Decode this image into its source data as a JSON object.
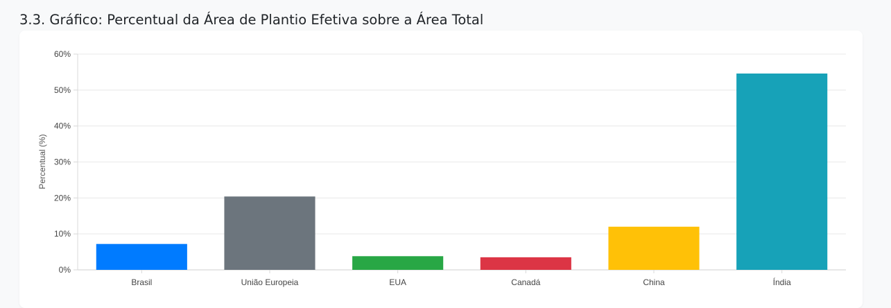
{
  "section": {
    "title": "3.3. Gráfico: Percentual da Área de Plantio Efetiva sobre a Área Total"
  },
  "chart_data": {
    "type": "bar",
    "title": "",
    "xlabel": "",
    "ylabel": "Percentual (%)",
    "ylim": [
      0,
      60
    ],
    "y_ticks": [
      "0%",
      "10%",
      "20%",
      "30%",
      "40%",
      "50%",
      "60%"
    ],
    "y_tick_values": [
      0,
      10,
      20,
      30,
      40,
      50,
      60
    ],
    "grid": true,
    "legend": "none",
    "categories": [
      "Brasil",
      "União Europeia",
      "EUA",
      "Canadá",
      "China",
      "Índia"
    ],
    "values": [
      7.2,
      20.4,
      3.8,
      3.5,
      12.0,
      54.6
    ],
    "colors": [
      "#007bff",
      "#6c757d",
      "#28a745",
      "#dc3545",
      "#ffc107",
      "#17a2b8"
    ]
  }
}
